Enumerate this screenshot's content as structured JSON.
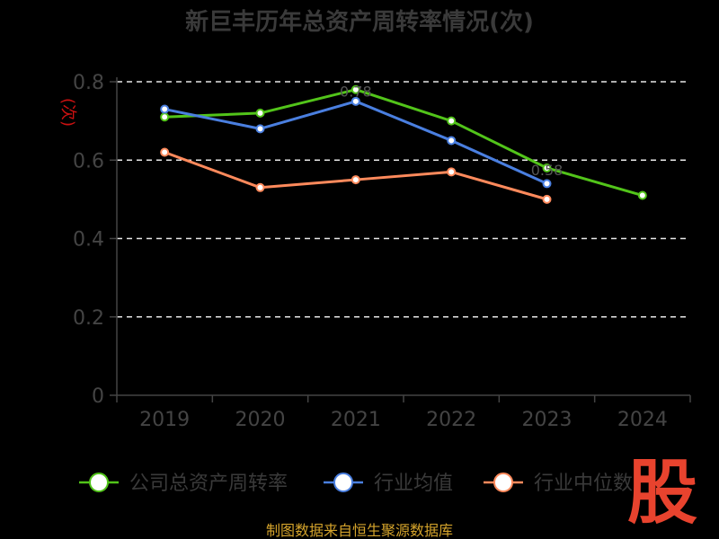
{
  "chart_data": {
    "type": "line",
    "title": "新巨丰历年总资产周转率情况(次)",
    "ylabel": "(次)",
    "categories": [
      "2019",
      "2020",
      "2021",
      "2022",
      "2023",
      "2024"
    ],
    "ylim": [
      0,
      0.8
    ],
    "yticks": [
      "0",
      "0.2",
      "0.4",
      "0.6",
      "0.8"
    ],
    "grid": true,
    "legend_position": "bottom",
    "series": [
      {
        "name": "公司总资产周转率",
        "color": "#52c41a",
        "values": [
          0.71,
          0.72,
          0.78,
          0.7,
          0.58,
          0.51
        ],
        "labels": [
          "",
          "",
          "0.78",
          "",
          "0.58",
          ""
        ]
      },
      {
        "name": "行业均值",
        "color": "#4a7fe0",
        "values": [
          0.73,
          0.68,
          0.75,
          0.65,
          0.54,
          null
        ],
        "labels": [
          "",
          "",
          "",
          "",
          "",
          ""
        ]
      },
      {
        "name": "行业中位数",
        "color": "#ff8a5c",
        "values": [
          0.62,
          0.53,
          0.55,
          0.57,
          0.5,
          null
        ],
        "labels": [
          "",
          "",
          "",
          "",
          "",
          ""
        ]
      }
    ]
  },
  "legend": [
    "公司总资产周转率",
    "行业均值",
    "行业中位数"
  ],
  "source": "制图数据来自恒生聚源数据库",
  "logo_text": "股"
}
